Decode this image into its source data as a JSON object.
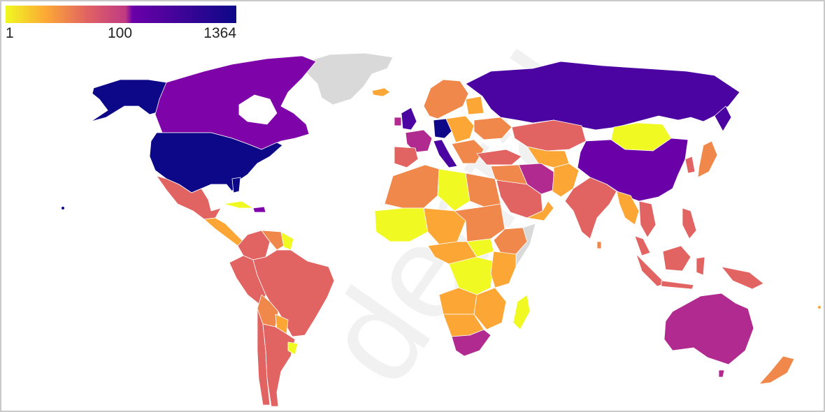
{
  "legend": {
    "min_label": "1",
    "mid_label": "100",
    "max_label": "1364",
    "gradient_colors": [
      "#f0f921",
      "#fca636",
      "#e16462",
      "#b12a90",
      "#6a00a8",
      "#0d0887"
    ]
  },
  "colors": {
    "no_data": "#d9d9d9",
    "highest": "#0d0887",
    "very_high": "#4b03a1",
    "high": "#7e03a8",
    "upper_mid": "#b12a90",
    "mid": "#e16462",
    "lower_mid": "#f0884b",
    "low": "#fca636",
    "lowest": "#f0f921"
  }
}
